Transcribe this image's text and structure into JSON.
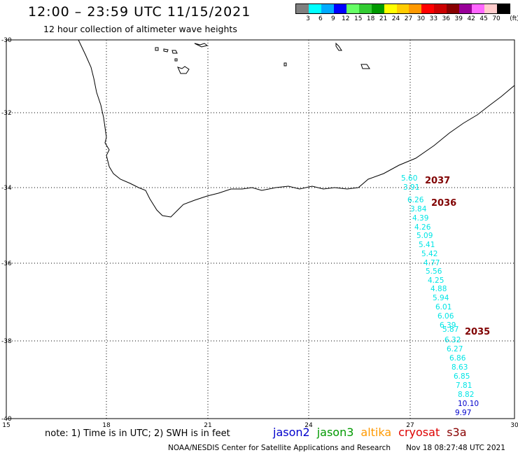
{
  "header": {
    "title": "12:00 – 23:59 UTC 11/15/2021",
    "subtitle": "12 hour collection of altimeter wave heights"
  },
  "legend": {
    "labels": [
      "3",
      "6",
      "9",
      "12",
      "15",
      "18",
      "21",
      "24",
      "27",
      "30",
      "33",
      "36",
      "39",
      "42",
      "45",
      "70"
    ],
    "unit": "(ft)",
    "colors": [
      "#808080",
      "#00ffff",
      "#00aaff",
      "#0000ff",
      "#66ff66",
      "#33cc33",
      "#009900",
      "#ffff00",
      "#ffcc00",
      "#ff9900",
      "#ff0000",
      "#cc0000",
      "#880000",
      "#990099",
      "#ff66ff",
      "#ffcccc",
      "#000000"
    ]
  },
  "map": {
    "lat_labels": [
      "-30",
      "-32",
      "-34",
      "-36",
      "-38",
      "-40"
    ],
    "lon_labels": [
      "15",
      "18",
      "21",
      "24",
      "27",
      "30"
    ],
    "pass_labels": [
      "2037",
      "2036",
      "2035"
    ],
    "swh_values": [
      "5.60",
      "3.91",
      "6.26",
      "3.84",
      "4.39",
      "4.26",
      "5.09",
      "5.41",
      "5.42",
      "4.77",
      "5.56",
      "4.25",
      "4.88",
      "5.94",
      "6.01",
      "6.06",
      "6.39",
      "5.87",
      "6.32",
      "6.27",
      "6.86",
      "8.63",
      "6.85",
      "7.81",
      "8.82",
      "10.10",
      "9.97"
    ],
    "swh_colors": {
      "cyan": "#00e5e5",
      "blue": "#0000cc"
    }
  },
  "footer": {
    "note": "note: 1) Time is in UTC; 2) SWH is in feet",
    "satellites": [
      {
        "name": "jason2",
        "color": "#0000cc"
      },
      {
        "name": "jason3",
        "color": "#009900"
      },
      {
        "name": "altika",
        "color": "#ff9900"
      },
      {
        "name": "cryosat",
        "color": "#dd0000"
      },
      {
        "name": "s3a",
        "color": "#880000"
      }
    ],
    "credit": "NOAA/NESDIS Center for Satellite Applications and Research",
    "timestamp": "Nov 18 08:27:48 UTC 2021"
  }
}
